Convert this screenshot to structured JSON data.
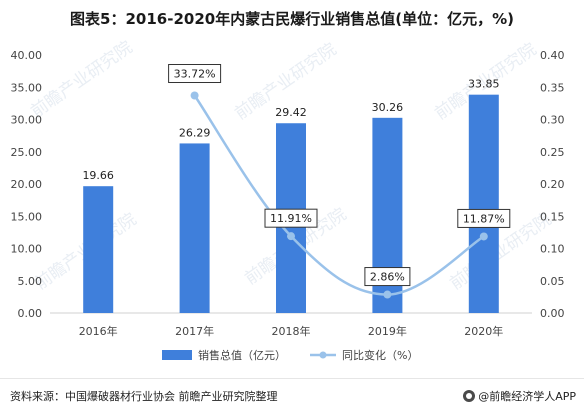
{
  "title": "图表5：2016-2020年内蒙古民爆行业销售总值(单位：亿元，%)",
  "source": "资料来源：中国爆破器材行业协会 前瞻产业研究院整理",
  "brand": "@前瞻经济学人APP",
  "watermark": "前瞻产业研究院",
  "colors": {
    "bar": "#3f7fdb",
    "line": "#9ac2ea",
    "axis_text": "#444444",
    "grid": "#e5e5e5"
  },
  "chart_data": {
    "type": "bar",
    "categories": [
      "2016年",
      "2017年",
      "2018年",
      "2019年",
      "2020年"
    ],
    "series": [
      {
        "name": "销售总值（亿元）",
        "type": "bar",
        "axis": "left",
        "values": [
          19.66,
          26.29,
          29.42,
          30.26,
          33.85
        ],
        "labels": [
          "19.66",
          "26.29",
          "29.42",
          "30.26",
          "33.85"
        ]
      },
      {
        "name": "同比变化（%）",
        "type": "line",
        "axis": "right",
        "values": [
          null,
          0.3372,
          0.1191,
          0.0286,
          0.1187
        ],
        "labels": [
          "",
          "33.72%",
          "11.91%",
          "2.86%",
          "11.87%"
        ]
      }
    ],
    "y_left": {
      "min": 0,
      "max": 40,
      "ticks": [
        "0.00",
        "5.00",
        "10.00",
        "15.00",
        "20.00",
        "25.00",
        "30.00",
        "35.00",
        "40.00"
      ]
    },
    "y_right": {
      "min": 0,
      "max": 0.4,
      "ticks": [
        "0.00",
        "0.05",
        "0.10",
        "0.15",
        "0.20",
        "0.25",
        "0.30",
        "0.35",
        "0.40"
      ]
    },
    "legend": "bottom-center",
    "grid": false
  }
}
